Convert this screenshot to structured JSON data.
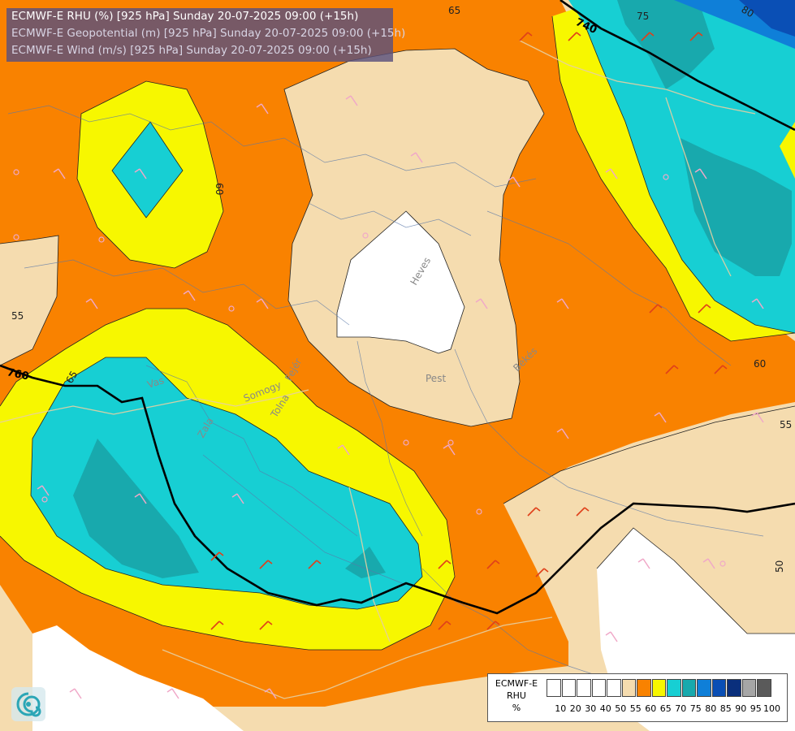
{
  "header": {
    "line1": "ECMWF-E RHU (%) [925 hPa] Sunday 20-07-2025 09:00 (+15h)",
    "line2": "ECMWF-E Geopotential (m) [925 hPa] Sunday 20-07-2025 09:00 (+15h)",
    "line3": "ECMWF-E Wind (m/s) [925 hPa] Sunday 20-07-2025 09:00 (+15h)"
  },
  "map": {
    "region_labels": {
      "pest": "Pest",
      "heves": "Heves",
      "bekes": "Békés",
      "vas": "Vas",
      "zala": "Zala",
      "somogy": "Somogy",
      "tolna": "Tolna",
      "fejer": "Fejér"
    },
    "rhu_contour_labels": [
      "65",
      "75",
      "80",
      "60",
      "55",
      "65",
      "60",
      "55",
      "50"
    ],
    "geopotential_labels": [
      "740",
      "760"
    ]
  },
  "legend": {
    "name_line1": "ECMWF-E",
    "name_line2": "RHU",
    "unit": "%",
    "ticks": [
      "10",
      "20",
      "30",
      "40",
      "50",
      "55",
      "60",
      "65",
      "70",
      "75",
      "80",
      "85",
      "90",
      "95",
      "100"
    ],
    "colors": [
      "#ffffff",
      "#ffffff",
      "#ffffff",
      "#ffffff",
      "#ffffff",
      "#f5dcaf",
      "#f98200",
      "#f7f700",
      "#17cfd3",
      "#18a9ad",
      "#0f7fd8",
      "#0a4fb5",
      "#0a2f7c",
      "#a6a6a6",
      "#5a5a5a"
    ]
  },
  "colors": {
    "rhu_50_55": "#f5dcaf",
    "rhu_55_60": "#f98200",
    "rhu_60_65": "#f7f700",
    "rhu_65_70": "#17cfd3",
    "rhu_70_75": "#18a9ad",
    "rhu_75_80": "#0f7fd8",
    "rhu_80_85": "#0a4fb5",
    "rhu_below_50": "#ffffff"
  },
  "logo_icon": "swirl-logo-icon"
}
